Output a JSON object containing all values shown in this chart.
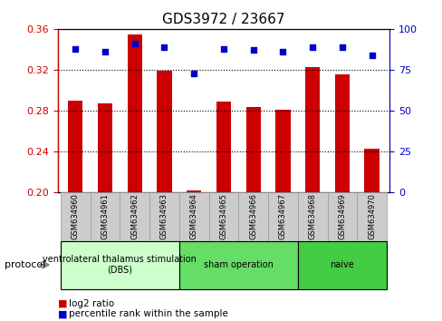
{
  "title": "GDS3972 / 23667",
  "samples": [
    "GSM634960",
    "GSM634961",
    "GSM634962",
    "GSM634963",
    "GSM634964",
    "GSM634965",
    "GSM634966",
    "GSM634967",
    "GSM634968",
    "GSM634969",
    "GSM634970"
  ],
  "log2_ratio": [
    0.29,
    0.287,
    0.355,
    0.319,
    0.202,
    0.289,
    0.284,
    0.281,
    0.323,
    0.316,
    0.243
  ],
  "percentile_rank": [
    88,
    86,
    91,
    89,
    73,
    88,
    87,
    86,
    89,
    89,
    84
  ],
  "bar_color": "#cc0000",
  "dot_color": "#0000cc",
  "ylim_left": [
    0.2,
    0.36
  ],
  "ylim_right": [
    0,
    100
  ],
  "yticks_left": [
    0.2,
    0.24,
    0.28,
    0.32,
    0.36
  ],
  "yticks_right": [
    0,
    25,
    50,
    75,
    100
  ],
  "groups": [
    {
      "label": "ventrolateral thalamus stimulation\n(DBS)",
      "start": 0,
      "end": 3,
      "color": "#ccffcc"
    },
    {
      "label": "sham operation",
      "start": 4,
      "end": 7,
      "color": "#66dd66"
    },
    {
      "label": "naive",
      "start": 8,
      "end": 10,
      "color": "#44cc44"
    }
  ],
  "protocol_label": "protocol",
  "legend_bar_label": "log2 ratio",
  "legend_dot_label": "percentile rank within the sample",
  "bar_width": 0.5,
  "bg_color": "#ffffff",
  "tick_label_color_left": "#cc0000",
  "tick_label_color_right": "#0000cc",
  "grid_color": "#000000",
  "sample_box_color": "#cccccc",
  "sample_box_edge": "#999999"
}
